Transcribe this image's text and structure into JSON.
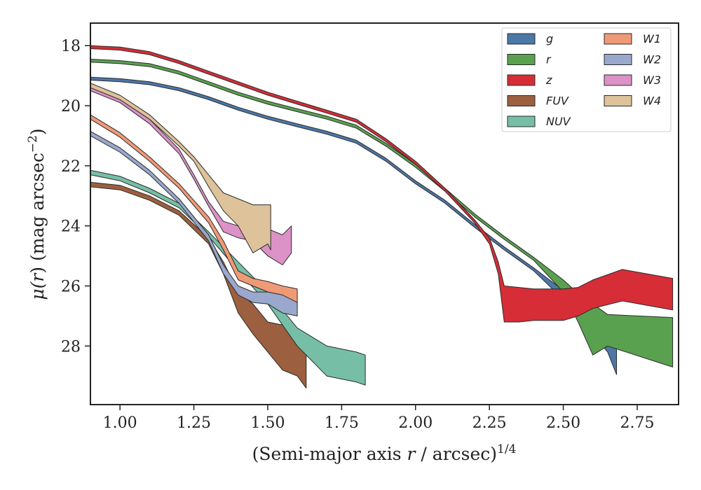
{
  "chart_data": {
    "type": "area",
    "xlabel": "(Semi-major axis r / arcsec)^1/4",
    "xlabel_main": "(Semi-major axis ",
    "xlabel_var": "r",
    "xlabel_tail": " / arcsec)",
    "xlabel_sup": "1/4",
    "ylabel": "μ(r) (mag arcsec^-2)",
    "ylabel_mu": "μ(",
    "ylabel_var": "r",
    "ylabel_mid": ") (mag arcsec",
    "ylabel_sup": "−2",
    "ylabel_end": ")",
    "xlim": [
      0.9,
      2.89
    ],
    "ylim": [
      17.25,
      29.95
    ],
    "y_inverted": true,
    "xticks": [
      1.0,
      1.25,
      1.5,
      1.75,
      2.0,
      2.25,
      2.5,
      2.75
    ],
    "xtick_labels": [
      "1.00",
      "1.25",
      "1.50",
      "1.75",
      "2.00",
      "2.25",
      "2.50",
      "2.75"
    ],
    "yticks": [
      18,
      20,
      22,
      24,
      26,
      28
    ],
    "ytick_labels": [
      "18",
      "20",
      "22",
      "24",
      "26",
      "28"
    ],
    "grid": false,
    "legend_position": "top-right",
    "legend_columns": 2,
    "series": [
      {
        "name": "g",
        "color": "#4c78a8",
        "x": [
          0.9,
          1.0,
          1.1,
          1.2,
          1.3,
          1.4,
          1.5,
          1.6,
          1.7,
          1.8,
          1.9,
          2.0,
          2.1,
          2.2,
          2.3,
          2.4,
          2.5,
          2.55,
          2.6,
          2.65,
          2.68
        ],
        "lower": [
          19.05,
          19.1,
          19.2,
          19.4,
          19.7,
          20.05,
          20.35,
          20.6,
          20.85,
          21.15,
          21.75,
          22.5,
          23.15,
          23.95,
          24.7,
          25.4,
          26.15,
          26.5,
          26.8,
          27.3,
          27.6
        ],
        "upper": [
          19.15,
          19.2,
          19.3,
          19.5,
          19.8,
          20.15,
          20.45,
          20.7,
          20.95,
          21.25,
          21.85,
          22.6,
          23.25,
          24.05,
          24.8,
          25.5,
          26.45,
          27.1,
          27.6,
          28.2,
          28.95
        ]
      },
      {
        "name": "r",
        "color": "#59a14f",
        "x": [
          0.9,
          1.0,
          1.1,
          1.2,
          1.3,
          1.4,
          1.5,
          1.6,
          1.7,
          1.8,
          1.9,
          2.0,
          2.1,
          2.2,
          2.3,
          2.4,
          2.5,
          2.55,
          2.6,
          2.65,
          2.87
        ],
        "lower": [
          18.45,
          18.5,
          18.6,
          18.85,
          19.2,
          19.55,
          19.85,
          20.1,
          20.35,
          20.65,
          21.25,
          21.95,
          22.75,
          23.6,
          24.35,
          25.05,
          25.8,
          26.25,
          26.6,
          26.95,
          27.05
        ],
        "upper": [
          18.55,
          18.6,
          18.7,
          18.95,
          19.3,
          19.65,
          19.95,
          20.2,
          20.45,
          20.75,
          21.35,
          22.05,
          22.85,
          23.7,
          24.45,
          25.15,
          26.2,
          27.2,
          28.3,
          28.0,
          28.7
        ]
      },
      {
        "name": "z",
        "color": "#d62d36",
        "x": [
          0.9,
          1.0,
          1.1,
          1.2,
          1.3,
          1.4,
          1.5,
          1.6,
          1.7,
          1.8,
          1.9,
          2.0,
          2.1,
          2.2,
          2.25,
          2.28,
          2.3,
          2.35,
          2.4,
          2.5,
          2.55,
          2.6,
          2.7,
          2.87
        ],
        "lower": [
          18.0,
          18.05,
          18.2,
          18.5,
          18.85,
          19.2,
          19.55,
          19.85,
          20.15,
          20.45,
          21.1,
          21.85,
          22.75,
          23.8,
          24.4,
          25.2,
          26.0,
          26.05,
          26.1,
          26.1,
          26.05,
          25.8,
          25.45,
          25.75
        ],
        "upper": [
          18.1,
          18.15,
          18.3,
          18.6,
          18.95,
          19.3,
          19.65,
          19.95,
          20.25,
          20.55,
          21.2,
          21.95,
          22.85,
          23.9,
          24.6,
          25.6,
          27.2,
          27.2,
          27.15,
          27.15,
          27.0,
          26.75,
          26.5,
          26.8
        ]
      },
      {
        "name": "FUV",
        "color": "#9c5f3f",
        "x": [
          0.9,
          1.0,
          1.1,
          1.2,
          1.3,
          1.35,
          1.4,
          1.45,
          1.5,
          1.55,
          1.6,
          1.63
        ],
        "lower": [
          22.55,
          22.65,
          23.0,
          23.5,
          24.4,
          25.2,
          26.2,
          26.6,
          27.2,
          27.3,
          27.6,
          27.9
        ],
        "upper": [
          22.7,
          22.8,
          23.15,
          23.65,
          24.6,
          25.6,
          26.9,
          27.6,
          28.2,
          28.8,
          29.0,
          29.4
        ]
      },
      {
        "name": "NUV",
        "color": "#76bfa6",
        "x": [
          0.9,
          1.0,
          1.1,
          1.2,
          1.3,
          1.4,
          1.5,
          1.55,
          1.6,
          1.7,
          1.8,
          1.83
        ],
        "lower": [
          22.15,
          22.35,
          22.75,
          23.25,
          24.2,
          25.2,
          26.2,
          26.8,
          27.4,
          28.0,
          28.2,
          28.3
        ],
        "upper": [
          22.3,
          22.5,
          22.9,
          23.4,
          24.35,
          25.5,
          26.6,
          27.3,
          28.0,
          29.0,
          29.2,
          29.3
        ]
      },
      {
        "name": "W1",
        "color": "#ef9a76",
        "x": [
          0.9,
          1.0,
          1.1,
          1.2,
          1.3,
          1.35,
          1.4,
          1.45,
          1.5,
          1.55,
          1.6
        ],
        "lower": [
          20.3,
          20.9,
          21.7,
          22.6,
          23.7,
          24.5,
          25.5,
          25.75,
          25.85,
          26.0,
          26.1
        ],
        "upper": [
          20.45,
          21.05,
          21.85,
          22.75,
          23.9,
          24.8,
          25.8,
          26.0,
          26.2,
          26.5,
          26.7
        ]
      },
      {
        "name": "W2",
        "color": "#99a8cc",
        "x": [
          0.9,
          1.0,
          1.1,
          1.2,
          1.3,
          1.35,
          1.4,
          1.45,
          1.5,
          1.55,
          1.6
        ],
        "lower": [
          20.85,
          21.4,
          22.15,
          23.1,
          24.3,
          25.3,
          26.0,
          26.2,
          26.2,
          26.3,
          26.55
        ],
        "upper": [
          21.0,
          21.55,
          22.3,
          23.25,
          24.5,
          25.6,
          26.3,
          26.55,
          26.6,
          26.9,
          27.0
        ]
      },
      {
        "name": "W3",
        "color": "#dc92c6",
        "x": [
          0.9,
          1.0,
          1.1,
          1.2,
          1.25,
          1.3,
          1.35,
          1.4,
          1.45,
          1.5,
          1.55,
          1.58
        ],
        "lower": [
          19.35,
          19.75,
          20.45,
          21.45,
          22.3,
          23.2,
          23.85,
          24.0,
          23.8,
          24.1,
          24.3,
          24.0
        ],
        "upper": [
          19.5,
          19.9,
          20.6,
          21.6,
          22.45,
          23.35,
          24.2,
          24.4,
          24.5,
          25.0,
          25.3,
          24.9
        ]
      },
      {
        "name": "W4",
        "color": "#ddc29a",
        "x": [
          0.9,
          1.0,
          1.1,
          1.2,
          1.25,
          1.3,
          1.35,
          1.4,
          1.45,
          1.5,
          1.51
        ],
        "lower": [
          19.25,
          19.65,
          20.3,
          21.2,
          21.7,
          22.3,
          22.9,
          23.1,
          23.3,
          23.3,
          23.3
        ],
        "upper": [
          19.4,
          19.8,
          20.45,
          21.35,
          21.85,
          22.7,
          23.5,
          24.0,
          24.9,
          24.6,
          24.8
        ]
      }
    ]
  }
}
